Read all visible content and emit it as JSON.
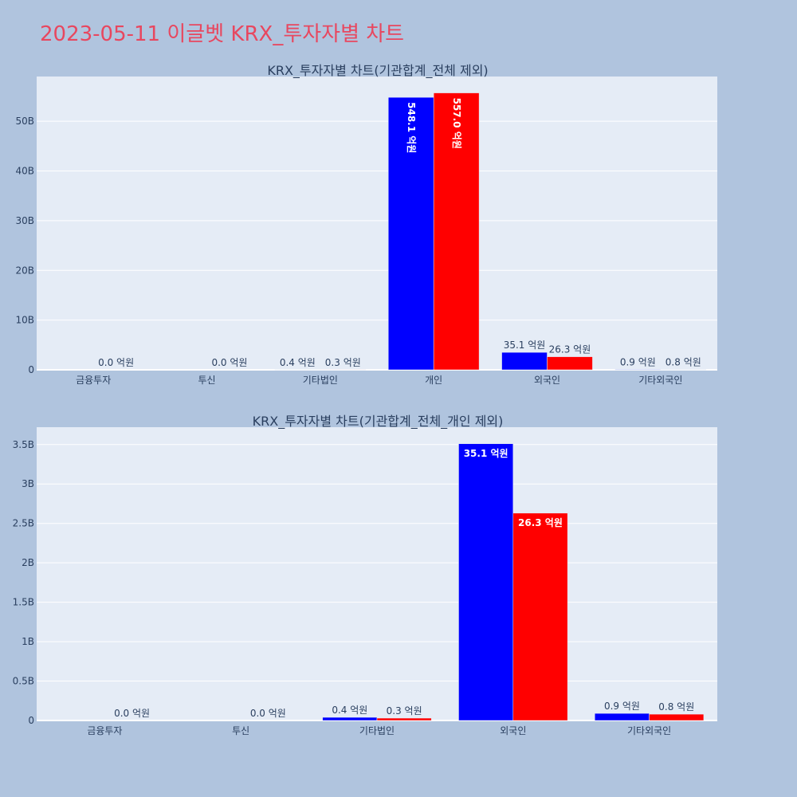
{
  "page": {
    "title": "2023-05-11 이글벳 KRX_투자자별 차트",
    "colors": {
      "background": "#b0c4de",
      "plot_bg": "#e5ecf6",
      "title": "#e8475f",
      "text": "#2a3f5f"
    }
  },
  "chart_data": [
    {
      "type": "bar",
      "title": "KRX_투자자별 차트(기관합계_전체 제외)",
      "categories": [
        "금융투자",
        "투신",
        "기타법인",
        "개인",
        "외국인",
        "기타외국인"
      ],
      "ylim": [
        0,
        59000000000
      ],
      "yticks": [
        0,
        10000000000,
        20000000000,
        30000000000,
        40000000000,
        50000000000
      ],
      "ytick_labels": [
        "0",
        "10B",
        "20B",
        "30B",
        "40B",
        "50B"
      ],
      "grid": true,
      "series": [
        {
          "color": "#0000ff",
          "values": [
            0,
            0,
            40000000,
            54810000000,
            3510000000,
            90000000
          ],
          "labels": [
            "",
            "",
            "0.4 억원",
            "548.1 억원",
            "35.1 억원",
            "0.9 억원"
          ]
        },
        {
          "color": "#ff0000",
          "values": [
            0,
            0,
            30000000,
            55700000000,
            2630000000,
            80000000
          ],
          "labels": [
            "0.0 억원",
            "0.0 억원",
            "0.3 억원",
            "557.0 억원",
            "26.3 억원",
            "0.8 억원"
          ]
        }
      ]
    },
    {
      "type": "bar",
      "title": "KRX_투자자별 차트(기관합계_전체_개인 제외)",
      "categories": [
        "금융투자",
        "투신",
        "기타법인",
        "외국인",
        "기타외국인"
      ],
      "ylim": [
        0,
        3720000000
      ],
      "yticks": [
        0,
        500000000,
        1000000000,
        1500000000,
        2000000000,
        2500000000,
        3000000000,
        3500000000
      ],
      "ytick_labels": [
        "0",
        "0.5B",
        "1B",
        "1.5B",
        "2B",
        "2.5B",
        "3B",
        "3.5B"
      ],
      "grid": true,
      "series": [
        {
          "color": "#0000ff",
          "values": [
            0,
            0,
            40000000,
            3510000000,
            90000000
          ],
          "labels": [
            "",
            "",
            "0.4 억원",
            "35.1 억원",
            "0.9 억원"
          ]
        },
        {
          "color": "#ff0000",
          "values": [
            0,
            0,
            30000000,
            2630000000,
            80000000
          ],
          "labels": [
            "0.0 억원",
            "0.0 억원",
            "0.3 억원",
            "26.3 억원",
            "0.8 억원"
          ]
        }
      ]
    }
  ]
}
